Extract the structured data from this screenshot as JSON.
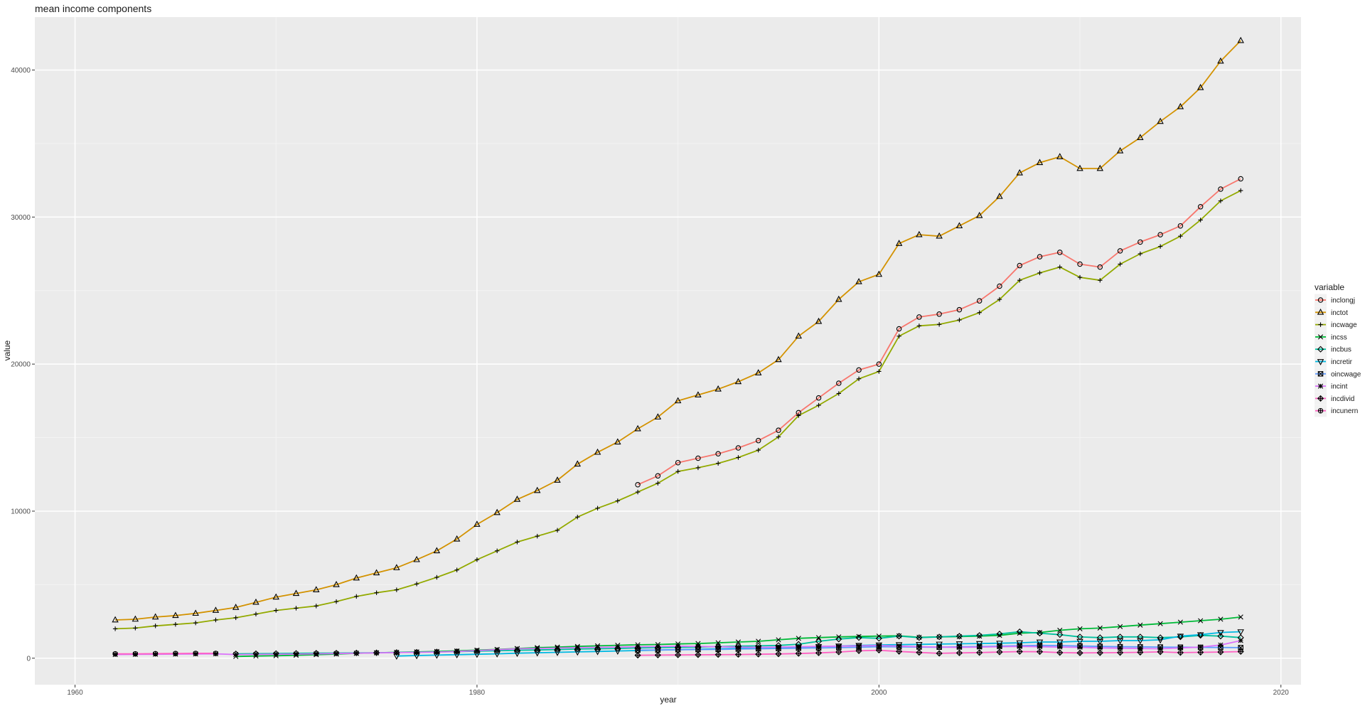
{
  "chart_data": {
    "type": "line",
    "title": "mean income components",
    "xlabel": "year",
    "ylabel": "value",
    "xlim": [
      1958,
      2021
    ],
    "ylim": [
      -1800,
      43600
    ],
    "xticks": [
      1960,
      1980,
      2000,
      2020
    ],
    "yticks": [
      0,
      10000,
      20000,
      30000,
      40000
    ],
    "grid": true,
    "legend_title": "variable",
    "legend_position": "right",
    "series": [
      {
        "name": "inclongj",
        "color": "#F8766D",
        "shape": "circle",
        "x": [
          1988,
          1989,
          1990,
          1991,
          1992,
          1993,
          1994,
          1995,
          1996,
          1997,
          1998,
          1999,
          2000,
          2001,
          2002,
          2003,
          2004,
          2005,
          2006,
          2007,
          2008,
          2009,
          2010,
          2011,
          2012,
          2013,
          2014,
          2015,
          2016,
          2017,
          2018
        ],
        "y": [
          11800,
          12400,
          13300,
          13600,
          13900,
          14300,
          14800,
          15500,
          16700,
          17700,
          18700,
          19600,
          20000,
          22400,
          23200,
          23400,
          23700,
          24300,
          25300,
          26700,
          27300,
          27600,
          26800,
          26600,
          27700,
          28300,
          28800,
          29400,
          30700,
          31900,
          32600
        ]
      },
      {
        "name": "inctot",
        "color": "#D39200",
        "shape": "triangle",
        "x": [
          1962,
          1963,
          1964,
          1965,
          1966,
          1967,
          1968,
          1969,
          1970,
          1971,
          1972,
          1973,
          1974,
          1975,
          1976,
          1977,
          1978,
          1979,
          1980,
          1981,
          1982,
          1983,
          1984,
          1985,
          1986,
          1987,
          1988,
          1989,
          1990,
          1991,
          1992,
          1993,
          1994,
          1995,
          1996,
          1997,
          1998,
          1999,
          2000,
          2001,
          2002,
          2003,
          2004,
          2005,
          2006,
          2007,
          2008,
          2009,
          2010,
          2011,
          2012,
          2013,
          2014,
          2015,
          2016,
          2017,
          2018
        ],
        "y": [
          2600,
          2650,
          2800,
          2900,
          3050,
          3250,
          3450,
          3800,
          4150,
          4400,
          4650,
          5000,
          5450,
          5800,
          6150,
          6700,
          7300,
          8100,
          9100,
          9900,
          10800,
          11400,
          12100,
          13200,
          14000,
          14700,
          15600,
          16400,
          17500,
          17900,
          18300,
          18800,
          19400,
          20300,
          21900,
          22900,
          24400,
          25600,
          26100,
          28200,
          28800,
          28700,
          29400,
          30100,
          31400,
          33000,
          33700,
          34100,
          33300,
          33300,
          34500,
          35400,
          36500,
          37500,
          38800,
          40600,
          42000
        ]
      },
      {
        "name": "incwage",
        "color": "#93AA00",
        "shape": "plus",
        "x": [
          1962,
          1963,
          1964,
          1965,
          1966,
          1967,
          1968,
          1969,
          1970,
          1971,
          1972,
          1973,
          1974,
          1975,
          1976,
          1977,
          1978,
          1979,
          1980,
          1981,
          1982,
          1983,
          1984,
          1985,
          1986,
          1987,
          1988,
          1989,
          1990,
          1991,
          1992,
          1993,
          1994,
          1995,
          1996,
          1997,
          1998,
          1999,
          2000,
          2001,
          2002,
          2003,
          2004,
          2005,
          2006,
          2007,
          2008,
          2009,
          2010,
          2011,
          2012,
          2013,
          2014,
          2015,
          2016,
          2017,
          2018
        ],
        "y": [
          2000,
          2050,
          2200,
          2300,
          2400,
          2600,
          2750,
          3000,
          3250,
          3400,
          3550,
          3850,
          4200,
          4450,
          4650,
          5050,
          5500,
          6000,
          6700,
          7300,
          7900,
          8300,
          8700,
          9600,
          10200,
          10700,
          11300,
          11900,
          12700,
          12950,
          13250,
          13650,
          14150,
          15050,
          16500,
          17200,
          18000,
          19000,
          19500,
          21900,
          22600,
          22700,
          23000,
          23500,
          24400,
          25700,
          26200,
          26600,
          25900,
          25700,
          26800,
          27500,
          28000,
          28700,
          29800,
          31100,
          31800
        ]
      },
      {
        "name": "incss",
        "color": "#00BA38",
        "shape": "x",
        "x": [
          1968,
          1969,
          1970,
          1971,
          1972,
          1973,
          1974,
          1975,
          1976,
          1977,
          1978,
          1979,
          1980,
          1981,
          1982,
          1983,
          1984,
          1985,
          1986,
          1987,
          1988,
          1989,
          1990,
          1991,
          1992,
          1993,
          1994,
          1995,
          1996,
          1997,
          1998,
          1999,
          2000,
          2001,
          2002,
          2003,
          2004,
          2005,
          2006,
          2007,
          2008,
          2009,
          2010,
          2011,
          2012,
          2013,
          2014,
          2015,
          2016,
          2017,
          2018
        ],
        "y": [
          120,
          150,
          170,
          200,
          240,
          280,
          330,
          370,
          400,
          430,
          460,
          500,
          550,
          600,
          660,
          720,
          760,
          800,
          840,
          880,
          910,
          930,
          970,
          1000,
          1050,
          1100,
          1150,
          1250,
          1350,
          1400,
          1450,
          1480,
          1500,
          1520,
          1420,
          1450,
          1470,
          1500,
          1550,
          1700,
          1750,
          1900,
          2000,
          2050,
          2150,
          2250,
          2350,
          2450,
          2550,
          2650,
          2800
        ]
      },
      {
        "name": "incbus",
        "color": "#00C19F",
        "shape": "diamond",
        "x": [
          1968,
          1969,
          1970,
          1971,
          1972,
          1973,
          1974,
          1975,
          1976,
          1977,
          1978,
          1979,
          1980,
          1981,
          1982,
          1983,
          1984,
          1985,
          1986,
          1987,
          1988,
          1989,
          1990,
          1991,
          1992,
          1993,
          1994,
          1995,
          1996,
          1997,
          1998,
          1999,
          2000,
          2001,
          2002,
          2003,
          2004,
          2005,
          2006,
          2007,
          2008,
          2009,
          2010,
          2011,
          2012,
          2013,
          2014,
          2015,
          2016,
          2017,
          2018
        ],
        "y": [
          300,
          310,
          320,
          330,
          340,
          350,
          360,
          370,
          390,
          410,
          430,
          450,
          480,
          510,
          540,
          560,
          590,
          620,
          640,
          660,
          700,
          720,
          740,
          760,
          790,
          820,
          840,
          870,
          950,
          1150,
          1300,
          1400,
          1350,
          1500,
          1400,
          1450,
          1500,
          1550,
          1650,
          1800,
          1700,
          1600,
          1450,
          1400,
          1450,
          1450,
          1400,
          1450,
          1550,
          1500,
          1400
        ]
      },
      {
        "name": "incretir",
        "color": "#00B9E3",
        "shape": "triangle-down",
        "x": [
          1976,
          1977,
          1978,
          1979,
          1980,
          1981,
          1982,
          1983,
          1984,
          1985,
          1986,
          1987,
          1988,
          1989,
          1990,
          1991,
          1992,
          1993,
          1994,
          1995,
          1996,
          1997,
          1998,
          1999,
          2000,
          2001,
          2002,
          2003,
          2004,
          2005,
          2006,
          2007,
          2008,
          2009,
          2010,
          2011,
          2012,
          2013,
          2014,
          2015,
          2016,
          2017,
          2018
        ],
        "y": [
          150,
          180,
          210,
          240,
          270,
          300,
          340,
          370,
          400,
          430,
          460,
          490,
          520,
          550,
          580,
          610,
          640,
          670,
          700,
          730,
          760,
          790,
          830,
          870,
          900,
          920,
          940,
          960,
          980,
          1000,
          1020,
          1050,
          1100,
          1100,
          1150,
          1150,
          1200,
          1200,
          1250,
          1500,
          1600,
          1750,
          1800
        ]
      },
      {
        "name": "oincwage",
        "color": "#619CFF",
        "shape": "square-cross",
        "x": [
          1988,
          1989,
          1990,
          1991,
          1992,
          1993,
          1994,
          1995,
          1996,
          1997,
          1998,
          1999,
          2000,
          2001,
          2002,
          2003,
          2004,
          2005,
          2006,
          2007,
          2008,
          2009,
          2010,
          2011,
          2012,
          2013,
          2014,
          2015,
          2016,
          2017,
          2018
        ],
        "y": [
          550,
          560,
          580,
          590,
          600,
          620,
          640,
          660,
          680,
          700,
          720,
          750,
          780,
          770,
          760,
          750,
          770,
          790,
          820,
          850,
          870,
          860,
          830,
          800,
          780,
          770,
          760,
          750,
          740,
          730,
          720
        ]
      },
      {
        "name": "incint",
        "color": "#DB72FB",
        "shape": "asterisk",
        "x": [
          1962,
          1963,
          1964,
          1965,
          1966,
          1967,
          1968,
          1969,
          1970,
          1971,
          1972,
          1973,
          1974,
          1975,
          1976,
          1977,
          1978,
          1979,
          1980,
          1981,
          1982,
          1983,
          1984,
          1985,
          1986,
          1987,
          1988,
          1989,
          1990,
          1991,
          1992,
          1993,
          1994,
          1995,
          1996,
          1997,
          1998,
          1999,
          2000,
          2001,
          2002,
          2003,
          2004,
          2005,
          2006,
          2007,
          2008,
          2009,
          2010,
          2011,
          2012,
          2013,
          2014,
          2015,
          2016,
          2017,
          2018
        ],
        "y": [
          250,
          260,
          270,
          280,
          290,
          300,
          250,
          260,
          270,
          280,
          300,
          320,
          340,
          360,
          380,
          400,
          420,
          460,
          520,
          580,
          640,
          660,
          690,
          720,
          740,
          760,
          780,
          790,
          820,
          800,
          780,
          760,
          740,
          760,
          780,
          800,
          820,
          840,
          860,
          820,
          780,
          760,
          740,
          760,
          780,
          800,
          780,
          760,
          740,
          700,
          680,
          660,
          640,
          700,
          760,
          900,
          1200
        ]
      },
      {
        "name": "incdivid",
        "color": "#FF61C3",
        "shape": "diamond-cross",
        "x": [
          1988,
          1989,
          1990,
          1991,
          1992,
          1993,
          1994,
          1995,
          1996,
          1997,
          1998,
          1999,
          2000,
          2001,
          2002,
          2003,
          2004,
          2005,
          2006,
          2007,
          2008,
          2009,
          2010,
          2011,
          2012,
          2013,
          2014,
          2015,
          2016,
          2017,
          2018
        ],
        "y": [
          200,
          210,
          220,
          230,
          240,
          250,
          270,
          290,
          320,
          360,
          420,
          500,
          540,
          460,
          390,
          330,
          360,
          380,
          420,
          450,
          440,
          380,
          360,
          370,
          380,
          400,
          430,
          380,
          400,
          420,
          450
        ]
      },
      {
        "name": "incunern",
        "color": "#FF61C3",
        "shape": "circle-plus",
        "x": [
          1962,
          1963,
          1964,
          1965,
          1966,
          1967
        ],
        "y": [
          300,
          300,
          310,
          320,
          330,
          330
        ]
      }
    ]
  }
}
